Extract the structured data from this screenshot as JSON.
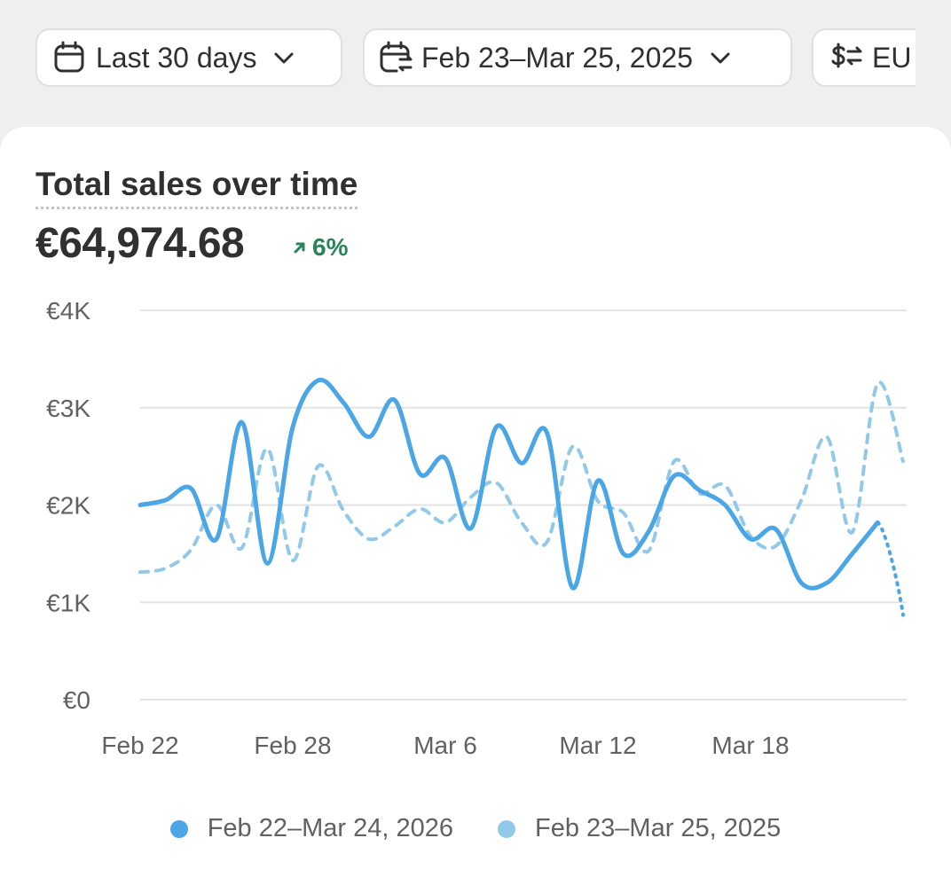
{
  "filters": {
    "period": {
      "label": "Last 30 days",
      "icon": "calendar-icon"
    },
    "compare": {
      "label": "Feb 23–Mar 25, 2025",
      "icon": "calendar-compare-icon"
    },
    "currency": {
      "label": "EU",
      "icon": "currency-exchange-icon"
    }
  },
  "card": {
    "title": "Total sales over time",
    "total": "€64,974.68",
    "change": "6%",
    "change_direction": "up"
  },
  "colors": {
    "current": "#4ba6e6",
    "previous": "#93c9e8",
    "positive": "#29845a"
  },
  "chart_data": {
    "type": "line",
    "title": "Total sales over time",
    "xlabel": "",
    "ylabel": "",
    "ylim": [
      0,
      4000
    ],
    "y_ticks": [
      "€0",
      "€1K",
      "€2K",
      "€3K",
      "€4K"
    ],
    "x_ticks": [
      "Feb 22",
      "Feb 28",
      "Mar 6",
      "Mar 12",
      "Mar 18"
    ],
    "x": [
      "Feb 22",
      "Feb 23",
      "Feb 24",
      "Feb 25",
      "Feb 26",
      "Feb 27",
      "Feb 28",
      "Mar 1",
      "Mar 2",
      "Mar 3",
      "Mar 4",
      "Mar 5",
      "Mar 6",
      "Mar 7",
      "Mar 8",
      "Mar 9",
      "Mar 10",
      "Mar 11",
      "Mar 12",
      "Mar 13",
      "Mar 14",
      "Mar 15",
      "Mar 16",
      "Mar 17",
      "Mar 18",
      "Mar 19",
      "Mar 20",
      "Mar 21",
      "Mar 22",
      "Mar 23",
      "Mar 24"
    ],
    "grid": true,
    "legend": "bottom",
    "series": [
      {
        "name": "Feb 22–Mar 24, 2026",
        "style": "solid",
        "values": [
          2000,
          2050,
          2170,
          1650,
          2850,
          1400,
          2800,
          3280,
          3050,
          2700,
          3080,
          2320,
          2480,
          1760,
          2800,
          2430,
          2740,
          1150,
          2250,
          1500,
          1730,
          2300,
          2150,
          2000,
          1650,
          1750,
          1200,
          1200,
          1500,
          1820,
          870
        ]
      },
      {
        "name": "Feb 23–Mar 25, 2025",
        "style": "dashed",
        "values": [
          1310,
          1350,
          1540,
          2000,
          1560,
          2580,
          1430,
          2400,
          1940,
          1650,
          1780,
          1960,
          1820,
          2080,
          2230,
          1820,
          1620,
          2600,
          2040,
          1920,
          1530,
          2450,
          2120,
          2200,
          1680,
          1580,
          2050,
          2700,
          1720,
          3250,
          2450
        ]
      }
    ]
  }
}
